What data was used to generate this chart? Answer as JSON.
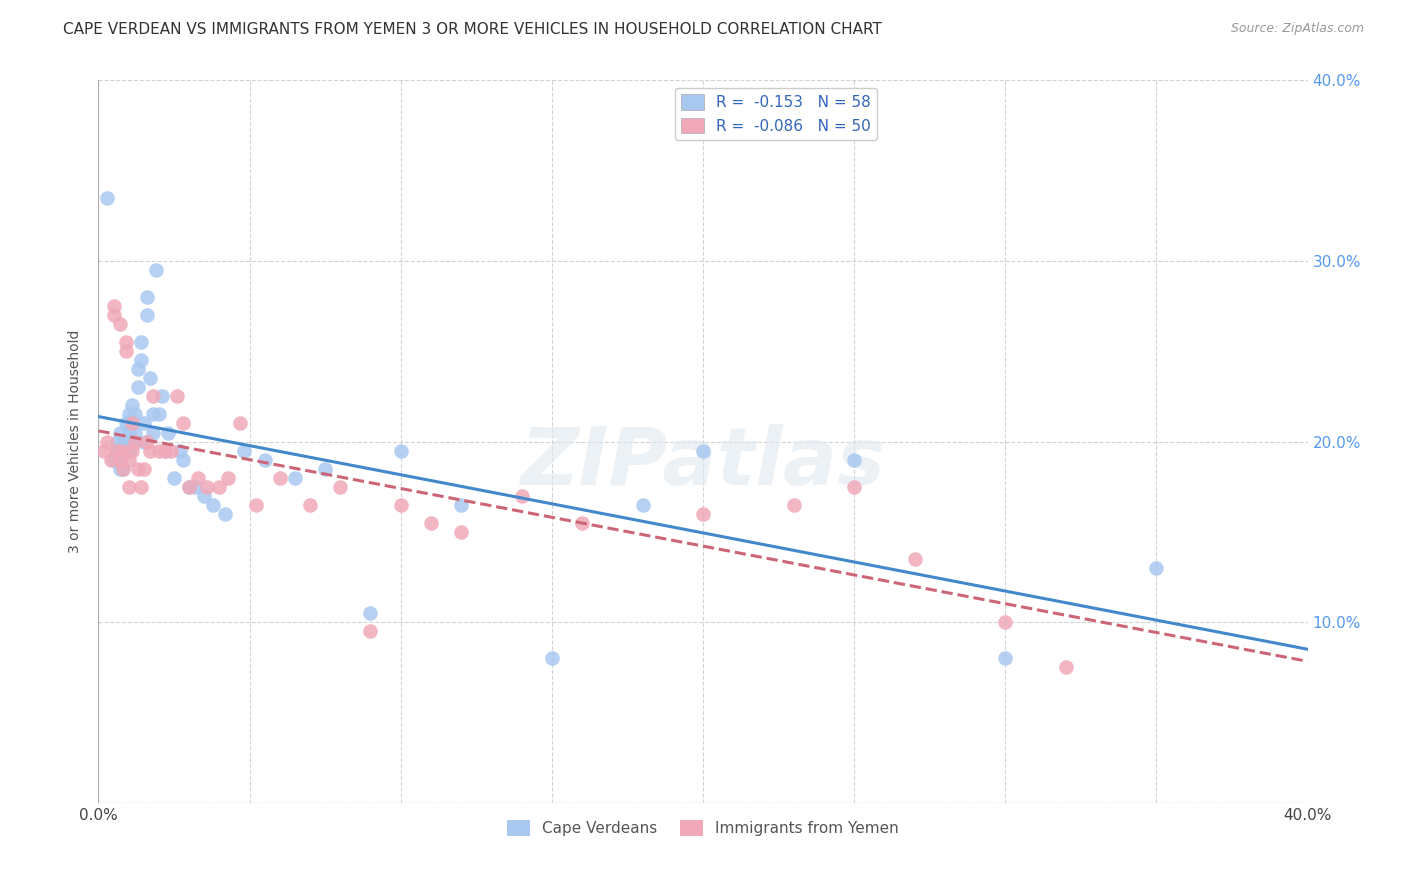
{
  "title": "CAPE VERDEAN VS IMMIGRANTS FROM YEMEN 3 OR MORE VEHICLES IN HOUSEHOLD CORRELATION CHART",
  "source": "Source: ZipAtlas.com",
  "ylabel": "3 or more Vehicles in Household",
  "xlim": [
    0,
    0.4
  ],
  "ylim": [
    0,
    0.4
  ],
  "yticks": [
    0.0,
    0.1,
    0.2,
    0.3,
    0.4
  ],
  "xticks": [
    0.0,
    0.05,
    0.1,
    0.15,
    0.2,
    0.25,
    0.3,
    0.35,
    0.4
  ],
  "grid_color": "#c8c8c8",
  "watermark": "ZIPatlas",
  "blue_color": "#a8c8f0",
  "pink_color": "#f0a8b8",
  "blue_line_color": "#4488cc",
  "pink_line_color": "#cc6677",
  "legend_label_blue_bottom": "Cape Verdeans",
  "legend_label_pink_bottom": "Immigrants from Yemen",
  "R_blue": -0.153,
  "N_blue": 58,
  "R_pink": -0.086,
  "N_pink": 50,
  "blue_x": [
    0.003,
    0.005,
    0.006,
    0.006,
    0.007,
    0.007,
    0.007,
    0.008,
    0.008,
    0.008,
    0.009,
    0.009,
    0.009,
    0.01,
    0.01,
    0.01,
    0.011,
    0.011,
    0.011,
    0.012,
    0.012,
    0.013,
    0.013,
    0.014,
    0.014,
    0.015,
    0.015,
    0.016,
    0.016,
    0.017,
    0.018,
    0.018,
    0.019,
    0.02,
    0.021,
    0.022,
    0.023,
    0.025,
    0.027,
    0.028,
    0.03,
    0.032,
    0.035,
    0.038,
    0.042,
    0.048,
    0.055,
    0.065,
    0.075,
    0.09,
    0.1,
    0.12,
    0.15,
    0.18,
    0.2,
    0.25,
    0.3,
    0.35
  ],
  "blue_y": [
    0.335,
    0.19,
    0.195,
    0.2,
    0.205,
    0.19,
    0.185,
    0.2,
    0.195,
    0.185,
    0.21,
    0.2,
    0.195,
    0.215,
    0.205,
    0.195,
    0.22,
    0.21,
    0.2,
    0.215,
    0.205,
    0.24,
    0.23,
    0.255,
    0.245,
    0.21,
    0.2,
    0.28,
    0.27,
    0.235,
    0.215,
    0.205,
    0.295,
    0.215,
    0.225,
    0.195,
    0.205,
    0.18,
    0.195,
    0.19,
    0.175,
    0.175,
    0.17,
    0.165,
    0.16,
    0.195,
    0.19,
    0.18,
    0.185,
    0.105,
    0.195,
    0.165,
    0.08,
    0.165,
    0.195,
    0.19,
    0.08,
    0.13
  ],
  "pink_x": [
    0.002,
    0.003,
    0.004,
    0.005,
    0.005,
    0.006,
    0.007,
    0.007,
    0.008,
    0.008,
    0.009,
    0.009,
    0.01,
    0.01,
    0.011,
    0.011,
    0.012,
    0.013,
    0.014,
    0.015,
    0.016,
    0.017,
    0.018,
    0.02,
    0.022,
    0.024,
    0.026,
    0.028,
    0.03,
    0.033,
    0.036,
    0.04,
    0.043,
    0.047,
    0.052,
    0.06,
    0.07,
    0.08,
    0.09,
    0.1,
    0.11,
    0.12,
    0.14,
    0.16,
    0.2,
    0.23,
    0.25,
    0.27,
    0.3,
    0.32
  ],
  "pink_y": [
    0.195,
    0.2,
    0.19,
    0.275,
    0.27,
    0.195,
    0.265,
    0.19,
    0.195,
    0.185,
    0.255,
    0.25,
    0.19,
    0.175,
    0.21,
    0.195,
    0.2,
    0.185,
    0.175,
    0.185,
    0.2,
    0.195,
    0.225,
    0.195,
    0.195,
    0.195,
    0.225,
    0.21,
    0.175,
    0.18,
    0.175,
    0.175,
    0.18,
    0.21,
    0.165,
    0.18,
    0.165,
    0.175,
    0.095,
    0.165,
    0.155,
    0.15,
    0.17,
    0.155,
    0.16,
    0.165,
    0.175,
    0.135,
    0.1,
    0.075
  ]
}
